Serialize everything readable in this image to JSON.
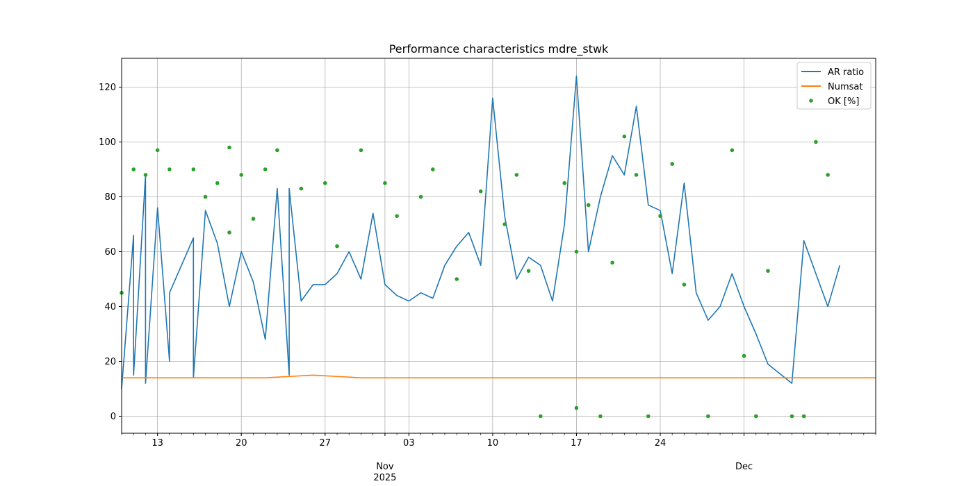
{
  "chart_data": {
    "type": "line",
    "title": "Performance characteristics mdre_stwk",
    "xlabel": "",
    "ylabel": "",
    "xlim": [
      "2025-10-10",
      "2025-12-12"
    ],
    "ylim": [
      -6.2,
      130.5
    ],
    "grid": true,
    "legend_position": "top-right",
    "y_ticks": [
      0,
      20,
      40,
      60,
      80,
      100,
      120
    ],
    "x_ticks": [
      {
        "date": "2025-10-13",
        "label": "13"
      },
      {
        "date": "2025-10-20",
        "label": "20"
      },
      {
        "date": "2025-10-27",
        "label": "27"
      },
      {
        "date": "2025-11-01",
        "label": "Nov",
        "sublabel": "2025"
      },
      {
        "date": "2025-11-03",
        "label": "03"
      },
      {
        "date": "2025-11-10",
        "label": "10"
      },
      {
        "date": "2025-11-17",
        "label": "17"
      },
      {
        "date": "2025-11-24",
        "label": "24"
      },
      {
        "date": "2025-12-01",
        "label": "Dec"
      }
    ],
    "series": [
      {
        "name": "AR ratio",
        "kind": "line",
        "color": "#1f77b4",
        "x": [
          "2025-10-10",
          "2025-10-11",
          "2025-10-11",
          "2025-10-12",
          "2025-10-12",
          "2025-10-13",
          "2025-10-14",
          "2025-10-14",
          "2025-10-16",
          "2025-10-16",
          "2025-10-17",
          "2025-10-18",
          "2025-10-19",
          "2025-10-20",
          "2025-10-21",
          "2025-10-22",
          "2025-10-23",
          "2025-10-24",
          "2025-10-24",
          "2025-10-25",
          "2025-10-26",
          "2025-10-27",
          "2025-10-28",
          "2025-10-29",
          "2025-10-30",
          "2025-10-31",
          "2025-11-01",
          "2025-11-02",
          "2025-11-03",
          "2025-11-04",
          "2025-11-05",
          "2025-11-06",
          "2025-11-07",
          "2025-11-08",
          "2025-11-09",
          "2025-11-10",
          "2025-11-11",
          "2025-11-12",
          "2025-11-13",
          "2025-11-14",
          "2025-11-15",
          "2025-11-16",
          "2025-11-17",
          "2025-11-18",
          "2025-11-19",
          "2025-11-20",
          "2025-11-21",
          "2025-11-22",
          "2025-11-23",
          "2025-11-24",
          "2025-11-25",
          "2025-11-26",
          "2025-11-27",
          "2025-11-28",
          "2025-11-29",
          "2025-11-30",
          "2025-12-01",
          "2025-12-02",
          "2025-12-03",
          "2025-12-05",
          "2025-12-06",
          "2025-12-07",
          "2025-12-08",
          "2025-12-09"
        ],
        "y": [
          10,
          66,
          15,
          88,
          12,
          76,
          20,
          45,
          65,
          14,
          75,
          63,
          40,
          60,
          49,
          28,
          83,
          15,
          83,
          42,
          48,
          48,
          52,
          60,
          50,
          74,
          48,
          44,
          42,
          45,
          43,
          55,
          62,
          67,
          55,
          116,
          73,
          50,
          58,
          55,
          42,
          70,
          124,
          60,
          80,
          95,
          88,
          113,
          77,
          75,
          52,
          85,
          45,
          35,
          40,
          52,
          40,
          30,
          19,
          12,
          64,
          52,
          40,
          55
        ]
      },
      {
        "name": "Numsat",
        "kind": "line",
        "color": "#ff7f0e",
        "x": [
          "2025-10-10",
          "2025-10-14",
          "2025-10-18",
          "2025-10-22",
          "2025-10-26",
          "2025-10-30",
          "2025-11-03",
          "2025-11-07",
          "2025-11-11",
          "2025-11-15",
          "2025-11-19",
          "2025-11-23",
          "2025-11-27",
          "2025-12-01",
          "2025-12-03",
          "2025-12-06",
          "2025-12-09",
          "2025-12-12"
        ],
        "y": [
          14,
          14,
          14,
          14,
          15,
          14,
          14,
          14,
          14,
          14,
          14,
          14,
          14,
          14,
          14,
          14,
          14,
          14
        ]
      },
      {
        "name": "OK [%]",
        "kind": "scatter",
        "color": "#2ca02c",
        "x": [
          "2025-10-10",
          "2025-10-11",
          "2025-10-12",
          "2025-10-13",
          "2025-10-14",
          "2025-10-16",
          "2025-10-17",
          "2025-10-18",
          "2025-10-19",
          "2025-10-19",
          "2025-10-20",
          "2025-10-21",
          "2025-10-22",
          "2025-10-23",
          "2025-10-25",
          "2025-10-27",
          "2025-10-28",
          "2025-10-30",
          "2025-11-01",
          "2025-11-02",
          "2025-11-04",
          "2025-11-05",
          "2025-11-07",
          "2025-11-09",
          "2025-11-11",
          "2025-11-12",
          "2025-11-13",
          "2025-11-14",
          "2025-11-16",
          "2025-11-17",
          "2025-11-17",
          "2025-11-18",
          "2025-11-19",
          "2025-11-20",
          "2025-11-21",
          "2025-11-22",
          "2025-11-23",
          "2025-11-24",
          "2025-11-25",
          "2025-11-26",
          "2025-11-28",
          "2025-11-30",
          "2025-12-01",
          "2025-12-02",
          "2025-12-03",
          "2025-12-05",
          "2025-12-06",
          "2025-12-07",
          "2025-12-08"
        ],
        "y": [
          45,
          90,
          88,
          97,
          90,
          90,
          80,
          85,
          67,
          98,
          88,
          72,
          90,
          97,
          83,
          85,
          62,
          97,
          85,
          73,
          80,
          90,
          50,
          82,
          70,
          88,
          53,
          0,
          85,
          3,
          60,
          77,
          0,
          56,
          102,
          88,
          0,
          73,
          92,
          48,
          0,
          97,
          22,
          0,
          53,
          0,
          0,
          100,
          88
        ]
      }
    ]
  }
}
